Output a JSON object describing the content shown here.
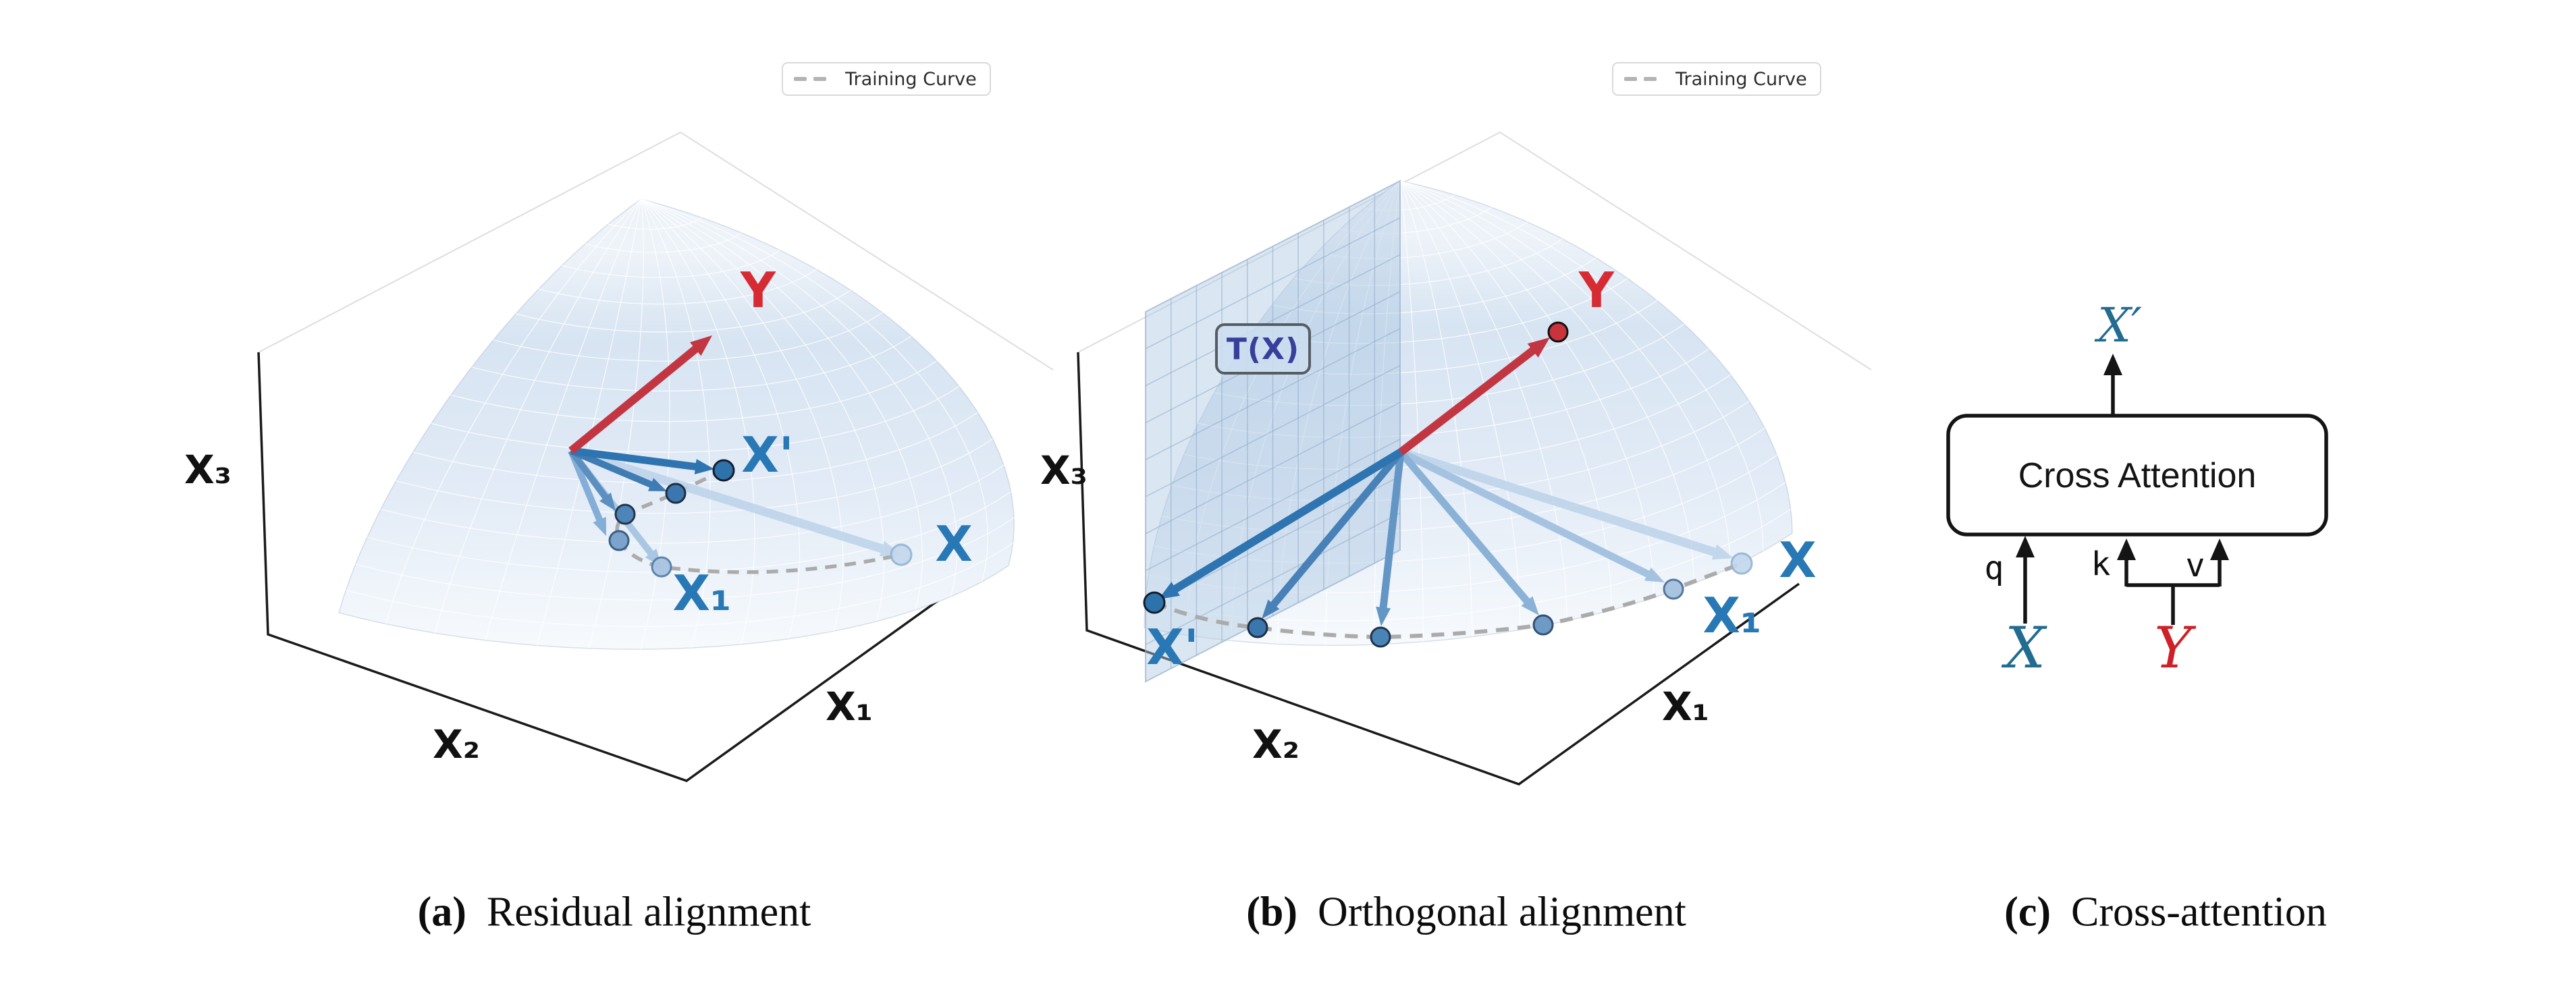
{
  "legend": {
    "label": "Training Curve"
  },
  "panel_a": {
    "caption_tag": "(a)",
    "caption_text": "Residual alignment",
    "axis_x1": "X₁",
    "axis_x2": "X₂",
    "axis_x3": "X₃",
    "label_y": "Y",
    "label_x_prime": "X'",
    "label_x1": "X₁",
    "label_x": "X"
  },
  "panel_b": {
    "caption_tag": "(b)",
    "caption_text": "Orthogonal alignment",
    "plane_label": "T(X)",
    "axis_x1": "X₁",
    "axis_x2": "X₂",
    "axis_x3": "X₃",
    "label_y": "Y",
    "label_x_prime": "X'",
    "label_x1": "X₁",
    "label_x": "X"
  },
  "panel_c": {
    "caption_tag": "(c)",
    "caption_text": "Cross-attention",
    "box_label": "Cross Attention",
    "label_q": "q",
    "label_k": "k",
    "label_v": "v",
    "label_x": "X",
    "label_y": "Y",
    "label_x_prime": "X′"
  },
  "colors": {
    "vector_blue_dark": "#2e74b0",
    "vector_blue_fade": "#bdd3ea",
    "label_blue": "#2878b5",
    "teal_blue": "#226b91",
    "arrow_red": "#c23642",
    "label_red": "#d62b33",
    "plane_label_blue": "#383f9b",
    "curve_gray": "#ababab",
    "sphere_blue": "#d7e4f2"
  }
}
